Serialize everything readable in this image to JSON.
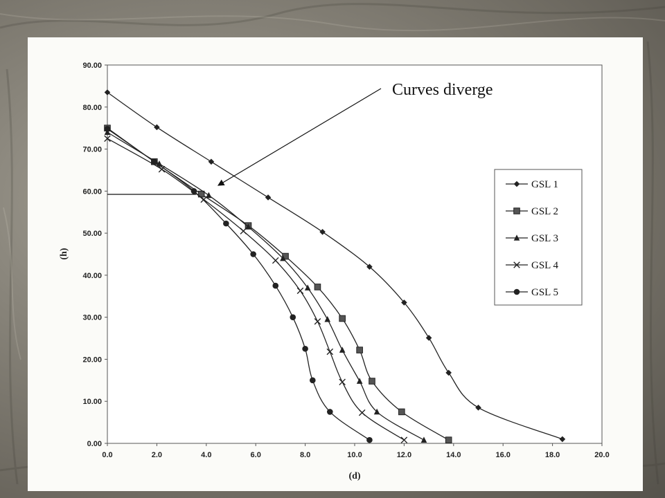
{
  "colors": {
    "series": "#222222",
    "axis": "#333333",
    "plot_bg": "#ffffff"
  },
  "chart_data": {
    "type": "line",
    "title": "",
    "xlabel": "(d)",
    "ylabel": "(h)",
    "xlim": [
      0,
      20
    ],
    "ylim": [
      0,
      90
    ],
    "x_ticks": [
      "0.0",
      "2.0",
      "4.0",
      "6.0",
      "8.0",
      "10.0",
      "12.0",
      "14.0",
      "16.0",
      "18.0",
      "20.0"
    ],
    "y_ticks": [
      "0.00",
      "10.00",
      "20.00",
      "30.00",
      "40.00",
      "50.00",
      "60.00",
      "70.00",
      "80.00",
      "90.00"
    ],
    "grid": false,
    "legend_position": "right",
    "series": [
      {
        "name": "GSL 1",
        "marker": "diamond",
        "points": [
          [
            0.0,
            83.5
          ],
          [
            2.0,
            75.2
          ],
          [
            4.2,
            67.0
          ],
          [
            6.5,
            58.5
          ],
          [
            8.7,
            50.3
          ],
          [
            10.6,
            42.0
          ],
          [
            12.0,
            33.5
          ],
          [
            13.0,
            25.1
          ],
          [
            13.8,
            16.8
          ],
          [
            15.0,
            8.5
          ],
          [
            18.4,
            1.0
          ]
        ]
      },
      {
        "name": "GSL 2",
        "marker": "square",
        "points": [
          [
            0.0,
            75.0
          ],
          [
            1.9,
            67.0
          ],
          [
            3.8,
            59.3
          ],
          [
            5.7,
            51.8
          ],
          [
            7.2,
            44.5
          ],
          [
            8.5,
            37.2
          ],
          [
            9.5,
            29.7
          ],
          [
            10.2,
            22.2
          ],
          [
            10.7,
            14.8
          ],
          [
            11.9,
            7.5
          ],
          [
            13.8,
            0.8
          ]
        ]
      },
      {
        "name": "GSL 3",
        "marker": "triangle",
        "points": [
          [
            0.0,
            74.0
          ],
          [
            2.1,
            66.5
          ],
          [
            4.1,
            59.0
          ],
          [
            5.7,
            51.5
          ],
          [
            7.1,
            44.0
          ],
          [
            8.1,
            37.0
          ],
          [
            8.9,
            29.5
          ],
          [
            9.5,
            22.2
          ],
          [
            10.2,
            14.8
          ],
          [
            10.9,
            7.5
          ],
          [
            12.8,
            0.8
          ]
        ]
      },
      {
        "name": "GSL 4",
        "marker": "x",
        "points": [
          [
            0.0,
            72.5
          ],
          [
            2.2,
            65.2
          ],
          [
            3.9,
            58.0
          ],
          [
            5.5,
            50.5
          ],
          [
            6.8,
            43.5
          ],
          [
            7.8,
            36.3
          ],
          [
            8.5,
            29.0
          ],
          [
            9.0,
            21.8
          ],
          [
            9.5,
            14.6
          ],
          [
            10.3,
            7.3
          ],
          [
            12.0,
            0.8
          ]
        ]
      },
      {
        "name": "GSL 5",
        "marker": "circle",
        "points": [
          [
            0.0,
            74.8
          ],
          [
            1.9,
            67.0
          ],
          [
            3.5,
            60.0
          ],
          [
            4.8,
            52.3
          ],
          [
            5.9,
            45.0
          ],
          [
            6.8,
            37.5
          ],
          [
            7.5,
            30.0
          ],
          [
            8.0,
            22.5
          ],
          [
            8.3,
            15.0
          ],
          [
            9.0,
            7.5
          ],
          [
            10.6,
            0.8
          ]
        ]
      }
    ],
    "annotation": {
      "text": "Curves diverge"
    }
  }
}
